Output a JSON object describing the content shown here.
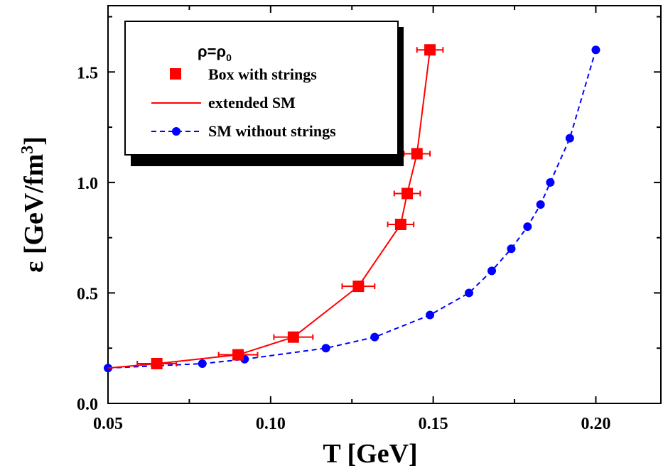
{
  "chart_data": {
    "type": "line",
    "xlabel": "T [GeV]",
    "ylabel_main": "ε [GeV/fm",
    "ylabel_sup": "3",
    "ylabel_end": "]",
    "xlim": [
      0.05,
      0.22
    ],
    "ylim": [
      0.0,
      1.8
    ],
    "xticks": [
      0.05,
      0.1,
      0.15,
      0.2
    ],
    "xtick_labels": [
      "0.05",
      "0.10",
      "0.15",
      "0.20"
    ],
    "yticks": [
      0.0,
      0.5,
      1.0,
      1.5
    ],
    "ytick_labels": [
      "0.0",
      "0.5",
      "1.0",
      "1.5"
    ],
    "grid": false,
    "legend": {
      "placement": "top-left",
      "header_main": "ρ=ρ",
      "header_sub": "0",
      "entries": [
        "Box with strings",
        "extended SM",
        "SM without strings"
      ]
    },
    "series": [
      {
        "name": "Box with strings",
        "marker": "square",
        "color": "#ff0000",
        "x": [
          0.065,
          0.09,
          0.107,
          0.127,
          0.14,
          0.142,
          0.145,
          0.149
        ],
        "y": [
          0.18,
          0.22,
          0.3,
          0.53,
          0.81,
          0.95,
          1.13,
          1.6
        ],
        "xerr": [
          0.006,
          0.006,
          0.006,
          0.005,
          0.004,
          0.004,
          0.004,
          0.004
        ]
      },
      {
        "name": "extended SM",
        "style": "solid",
        "color": "#ff0000",
        "x": [
          0.05,
          0.065,
          0.09,
          0.107,
          0.127,
          0.14,
          0.142,
          0.145,
          0.149
        ],
        "y": [
          0.16,
          0.18,
          0.22,
          0.3,
          0.53,
          0.81,
          0.95,
          1.13,
          1.6
        ]
      },
      {
        "name": "SM without strings",
        "marker": "circle",
        "style": "dashed",
        "color": "#0000ff",
        "x": [
          0.05,
          0.079,
          0.092,
          0.117,
          0.132,
          0.149,
          0.161,
          0.168,
          0.174,
          0.179,
          0.183,
          0.186,
          0.192,
          0.2
        ],
        "y": [
          0.16,
          0.18,
          0.2,
          0.25,
          0.3,
          0.4,
          0.5,
          0.6,
          0.7,
          0.8,
          0.9,
          1.0,
          1.2,
          1.6
        ]
      }
    ]
  }
}
